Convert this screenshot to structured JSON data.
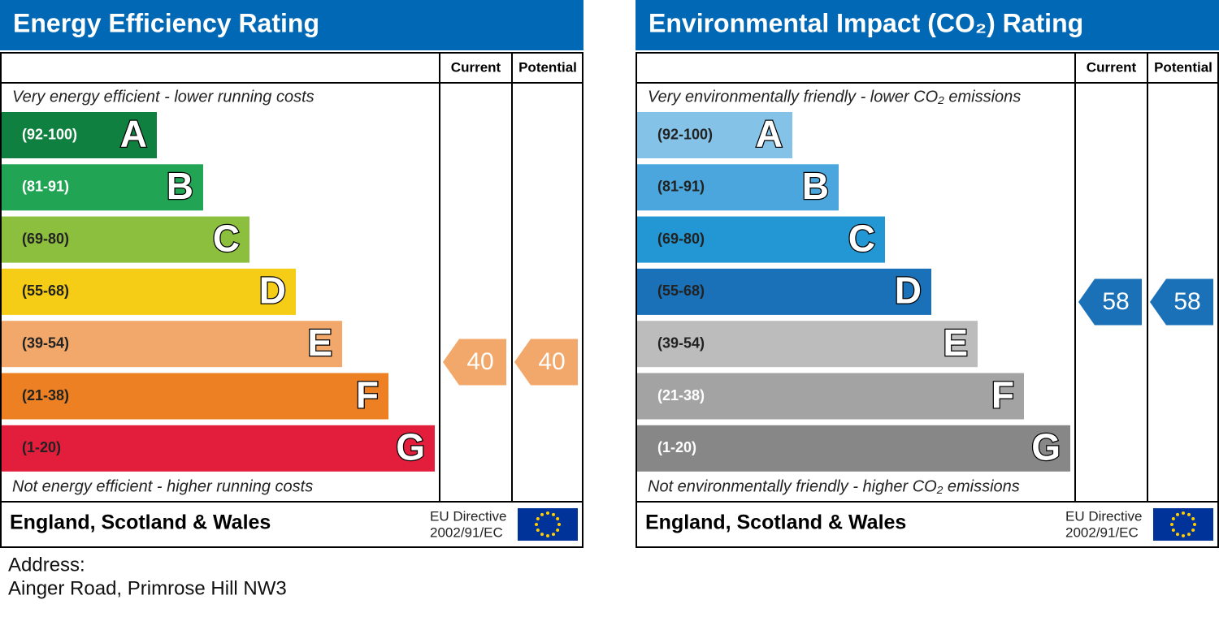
{
  "panels": [
    {
      "title": "Energy Efficiency Rating",
      "headers": [
        "Current",
        "Potential"
      ],
      "top_note": "Very energy efficient - lower running costs",
      "bottom_note": "Not energy efficient - higher running costs",
      "bands": [
        {
          "range": "(92-100)",
          "letter": "A",
          "color": "#108040",
          "text_color": "#ffffff"
        },
        {
          "range": "(81-91)",
          "letter": "B",
          "color": "#22a455",
          "text_color": "#ffffff"
        },
        {
          "range": "(69-80)",
          "letter": "C",
          "color": "#8dbf3f",
          "text_color": "#222222"
        },
        {
          "range": "(55-68)",
          "letter": "D",
          "color": "#f6cd16",
          "text_color": "#222222"
        },
        {
          "range": "(39-54)",
          "letter": "E",
          "color": "#f2a86a",
          "text_color": "#222222"
        },
        {
          "range": "(21-38)",
          "letter": "F",
          "color": "#ed8023",
          "text_color": "#222222"
        },
        {
          "range": "(1-20)",
          "letter": "G",
          "color": "#e31d3c",
          "text_color": "#222222"
        }
      ],
      "current": 40,
      "potential": 40,
      "arrow_color": "#f2a86a",
      "footer": {
        "region": "England, Scotland & Wales",
        "directive": [
          "EU Directive",
          "2002/91/EC"
        ]
      }
    },
    {
      "title": "Environmental Impact (CO₂) Rating",
      "headers": [
        "Current",
        "Potential"
      ],
      "top_note": "Very environmentally friendly - lower CO₂ emissions",
      "bottom_note": "Not environmentally friendly - higher CO₂ emissions",
      "bands": [
        {
          "range": "(92-100)",
          "letter": "A",
          "color": "#85c2e7",
          "text_color": "#222222"
        },
        {
          "range": "(81-91)",
          "letter": "B",
          "color": "#4aa6dc",
          "text_color": "#222222"
        },
        {
          "range": "(69-80)",
          "letter": "C",
          "color": "#2397d3",
          "text_color": "#222222"
        },
        {
          "range": "(55-68)",
          "letter": "D",
          "color": "#1a71b8",
          "text_color": "#222222"
        },
        {
          "range": "(39-54)",
          "letter": "E",
          "color": "#bcbcbc",
          "text_color": "#222222"
        },
        {
          "range": "(21-38)",
          "letter": "F",
          "color": "#a3a3a3",
          "text_color": "#ffffff"
        },
        {
          "range": "(1-20)",
          "letter": "G",
          "color": "#878787",
          "text_color": "#ffffff"
        }
      ],
      "current": 58,
      "potential": 58,
      "arrow_color": "#1a71b8",
      "footer": {
        "region": "England, Scotland & Wales",
        "directive": [
          "EU Directive",
          "2002/91/EC"
        ]
      }
    }
  ],
  "address": {
    "label": "Address:",
    "value": "Ainger Road, Primrose Hill NW3"
  }
}
